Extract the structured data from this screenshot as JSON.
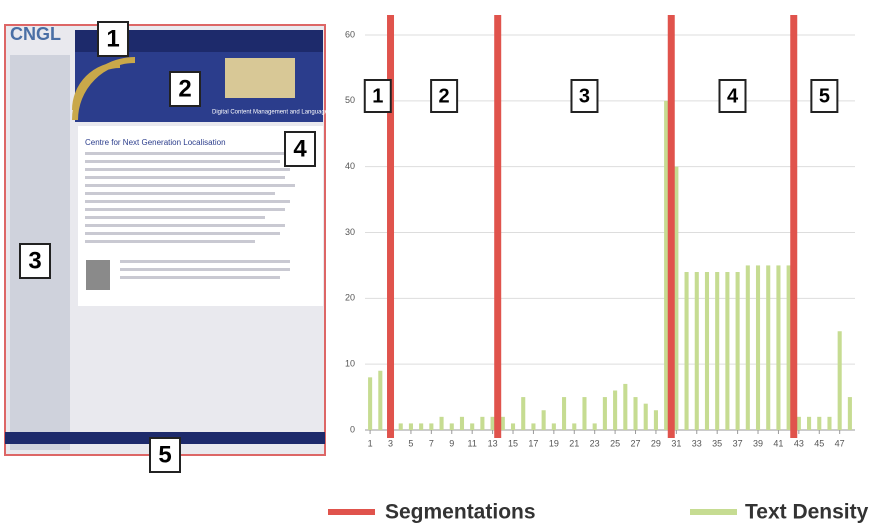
{
  "screenshot": {
    "logo": "CNGL",
    "heading": "Centre for Next Generation Localisation",
    "banner_text": "Digital Content Management and Language Technologies for Localisation",
    "labels": [
      "1",
      "2",
      "3",
      "4",
      "5"
    ]
  },
  "chart_data": {
    "type": "bar",
    "x": [
      1,
      2,
      3,
      4,
      5,
      6,
      7,
      8,
      9,
      10,
      11,
      12,
      13,
      14,
      15,
      16,
      17,
      18,
      19,
      20,
      21,
      22,
      23,
      24,
      25,
      26,
      27,
      28,
      29,
      30,
      31,
      32,
      33,
      34,
      35,
      36,
      37,
      38,
      39,
      40,
      41,
      42,
      43,
      44,
      45,
      46,
      47,
      48
    ],
    "xlim": [
      0.5,
      48.5
    ],
    "xticks": [
      1,
      3,
      5,
      7,
      9,
      11,
      13,
      15,
      17,
      19,
      21,
      23,
      25,
      27,
      29,
      31,
      33,
      35,
      37,
      39,
      41,
      43,
      45,
      47
    ],
    "ylim": [
      0,
      60
    ],
    "yticks": [
      0,
      10,
      20,
      30,
      40,
      50,
      60
    ],
    "grid": true,
    "series": [
      {
        "name": "Text Density",
        "color": "#c6dc92",
        "values": [
          8,
          9,
          2,
          1,
          1,
          1,
          1,
          2,
          1,
          2,
          1,
          2,
          2,
          2,
          1,
          5,
          1,
          3,
          1,
          5,
          1,
          5,
          1,
          5,
          6,
          7,
          5,
          4,
          3,
          50,
          40,
          24,
          24,
          24,
          24,
          24,
          24,
          25,
          25,
          25,
          25,
          25,
          2,
          2,
          2,
          2,
          15,
          5
        ]
      }
    ],
    "segmentations": {
      "name": "Segmentations",
      "color": "#e0534c",
      "values": [
        3,
        13.5,
        30.5,
        42.5
      ]
    },
    "regions": [
      "1",
      "2",
      "3",
      "4",
      "5"
    ]
  }
}
